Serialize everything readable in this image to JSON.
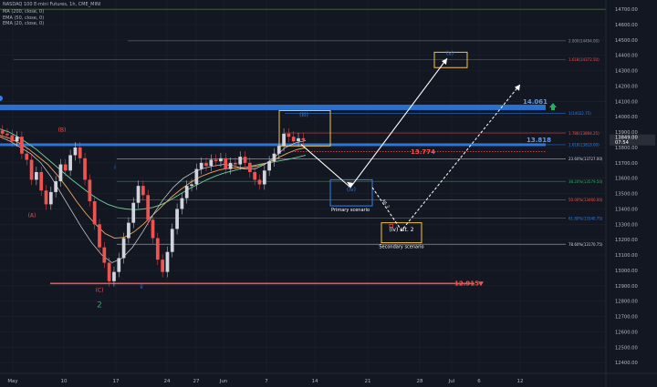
{
  "header": {
    "symbol_title": "NASDAQ 100 E-mini Futures, 1h, CME_MINI",
    "indicators": [
      "MA (200, close, 0)",
      "EMA (50, close, 0)",
      "EMA (20, close, 0)"
    ]
  },
  "colors": {
    "background": "#131722",
    "grid": "#1e222d",
    "candle_up": "#d1d4dc",
    "candle_down": "#ef5350",
    "ma200": "#6fcf97",
    "ema50": "#f2a65a",
    "ema20": "#d8d8d8",
    "scenario_box_yellow": "#f6c445",
    "scenario_box_blue": "#2f80ed",
    "support_red": "#ef5350",
    "resistance_blue": "#2f80ed"
  },
  "chart_data": {
    "type": "candlestick",
    "y_axis": {
      "ylim": [
        12330,
        14760
      ],
      "ticks": [
        12400,
        12500,
        12600,
        12700,
        12800,
        12900,
        13000,
        13100,
        13200,
        13300,
        13400,
        13500,
        13600,
        13700,
        13800,
        13900,
        14000,
        14100,
        14200,
        14300,
        14400,
        14500,
        14600,
        14700
      ]
    },
    "x_axis": {
      "tick_labels": [
        "May",
        "10",
        "17",
        "24",
        "27",
        "Jun",
        "7",
        "14",
        "21",
        "28",
        "Jul",
        "6",
        "12"
      ]
    },
    "price_labels": {
      "current": "13849.00",
      "countdown": "07:54"
    },
    "levels": [
      {
        "label": "14.061",
        "value": 14061,
        "color": "#2f80ed",
        "arrow": "up"
      },
      {
        "label": "13.818",
        "value": 13818,
        "color": "#2f80ed"
      },
      {
        "label": "13.774",
        "value": 13774,
        "color": "#ef5350"
      },
      {
        "label": "12.915",
        "value": 12915,
        "color": "#ef5350",
        "arrow": "down"
      }
    ],
    "fib_levels": [
      {
        "label": "2.000(14494.00)",
        "value": 14494
      },
      {
        "label": "1.618(14372.50)",
        "value": 14372.5
      },
      {
        "label": "1(14022.75)",
        "value": 14022.75
      },
      {
        "label": "1.786(13894.25)",
        "value": 13894.25
      },
      {
        "label": "1.618(13818.00)",
        "value": 13818
      },
      {
        "label": "23.60%(13727.00)",
        "value": 13727
      },
      {
        "label": "38.20%(13579.50)",
        "value": 13579.5
      },
      {
        "label": "50.00%(13460.00)",
        "value": 13460
      },
      {
        "label": "61.80%(13340.75)",
        "value": 13340.75
      },
      {
        "label": "78.60%(13170.75)",
        "value": 13170.75
      }
    ],
    "wave_labels": [
      {
        "text": "(A)",
        "color": "#ef5350"
      },
      {
        "text": "(B)",
        "color": "#ef5350"
      },
      {
        "text": "(C)",
        "color": "#ef5350"
      },
      {
        "text": "2",
        "color": "#27ae60"
      },
      {
        "text": "i",
        "color": "#2f80ed"
      },
      {
        "text": "ii",
        "color": "#2f80ed"
      },
      {
        "text": "(iii)",
        "color": "#2f80ed"
      },
      {
        "text": "(iv)",
        "color": "#2f80ed"
      },
      {
        "text": "(v)",
        "color": "#2f80ed"
      },
      {
        "text": "(iv) alt. 2",
        "color": "#ffffff"
      }
    ],
    "annotations": [
      {
        "text": "Primary scenario"
      },
      {
        "text": "Secondary scenario"
      },
      {
        "text": "Alt. 2"
      }
    ],
    "series": [
      {
        "name": "Price",
        "type": "candlestick",
        "close": [
          13890,
          13880,
          13840,
          13870,
          13760,
          13720,
          13590,
          13640,
          13520,
          13430,
          13510,
          13580,
          13690,
          13650,
          13750,
          13800,
          13730,
          13590,
          13450,
          13300,
          13150,
          13050,
          12930,
          12990,
          13080,
          13210,
          13310,
          13440,
          13550,
          13490,
          13330,
          13210,
          13070,
          12990,
          13120,
          13270,
          13400,
          13470,
          13550,
          13560,
          13660,
          13700,
          13680,
          13720,
          13710,
          13730,
          13660,
          13700,
          13690,
          13740,
          13700,
          13640,
          13590,
          13560,
          13650,
          13710,
          13760,
          13810,
          13890,
          13870,
          13840,
          13860,
          13849
        ]
      },
      {
        "name": "MA (200, close, 0)",
        "color": "#6fcf97",
        "values": [
          13920,
          13900,
          13870,
          13830,
          13790,
          13740,
          13690,
          13640,
          13590,
          13545,
          13500,
          13460,
          13430,
          13410,
          13400,
          13395,
          13400,
          13410,
          13430,
          13460,
          13495,
          13530,
          13560,
          13590,
          13615,
          13635,
          13650,
          13665,
          13680,
          13692,
          13702,
          13712,
          13722,
          13735,
          13750
        ]
      },
      {
        "name": "EMA (50, close, 0)",
        "color": "#f2a65a",
        "values": [
          13880,
          13860,
          13830,
          13790,
          13740,
          13690,
          13620,
          13540,
          13450,
          13370,
          13300,
          13240,
          13210,
          13215,
          13250,
          13300,
          13360,
          13420,
          13480,
          13530,
          13575,
          13610,
          13635,
          13655,
          13665,
          13668,
          13670,
          13680,
          13700,
          13730,
          13760,
          13785,
          13800
        ]
      },
      {
        "name": "EMA (20, close, 0)",
        "color": "#d8d8d8",
        "values": [
          13870,
          13840,
          13800,
          13760,
          13700,
          13610,
          13500,
          13390,
          13280,
          13180,
          13100,
          13050,
          13080,
          13150,
          13250,
          13360,
          13460,
          13540,
          13600,
          13640,
          13665,
          13680,
          13690,
          13680,
          13660,
          13660,
          13690,
          13740,
          13800,
          13830,
          13845
        ]
      },
      {
        "name": "Primary scenario path",
        "color": "#ffffff",
        "style": "solid",
        "values": [
          13820,
          13540,
          14380
        ]
      },
      {
        "name": "Secondary scenario path",
        "color": "#ffffff",
        "style": "dashed",
        "values": [
          13540,
          13260,
          14210
        ]
      }
    ]
  }
}
